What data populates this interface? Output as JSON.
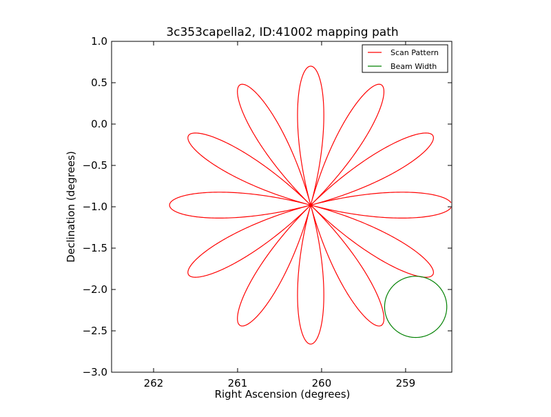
{
  "chart_data": {
    "type": "line",
    "title": "3c353capella2, ID:41002 mapping path",
    "xlabel": "Right Ascension (degrees)",
    "ylabel": "Declination (degrees)",
    "xlim": [
      262.5,
      258.45
    ],
    "ylim": [
      -3.0,
      1.0
    ],
    "x_ticks": [
      262,
      261,
      260,
      259
    ],
    "x_tick_labels": [
      "262",
      "261",
      "260",
      "259"
    ],
    "y_ticks": [
      1.0,
      0.5,
      0.0,
      -0.5,
      -1.0,
      -1.5,
      -2.0,
      -2.5,
      -3.0
    ],
    "y_tick_labels": [
      "1.0",
      "0.5",
      "0.0",
      "−0.5",
      "−1.0",
      "−1.5",
      "−2.0",
      "−2.5",
      "−3.0"
    ],
    "grid": false,
    "legend_position": "top-right",
    "series": [
      {
        "name": "Scan Pattern",
        "kind": "rose",
        "color": "#ff0000",
        "center_ra": 260.13,
        "center_dec": -0.98,
        "petals": 12,
        "radius_ra": 1.68,
        "radius_dec": 1.68,
        "start_angle_deg": 181,
        "end_angle_deg": 539
      },
      {
        "name": "Beam Width",
        "kind": "circle",
        "color": "#008000",
        "center_ra": 258.88,
        "center_dec": -2.21,
        "radius_ra": 0.37,
        "radius_dec": 0.37
      }
    ]
  }
}
